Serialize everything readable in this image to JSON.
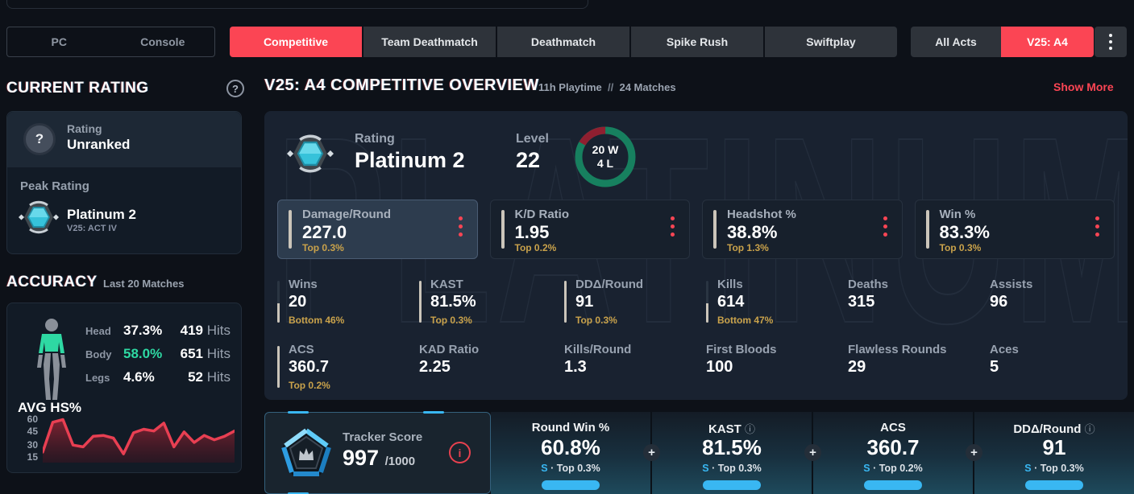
{
  "colors": {
    "accent_red": "#fb4554",
    "gold": "#c9a24b",
    "teal": "#2ed9a3",
    "blue": "#39b7f2",
    "donut_green": "#17805f",
    "donut_red": "#8f1f30",
    "chart_line": "#e83f52"
  },
  "topbar": {
    "platform": {
      "pc": "PC",
      "console": "Console"
    },
    "mode_tabs": [
      {
        "label": "Competitive",
        "active": true
      },
      {
        "label": "Team Deathmatch",
        "active": false
      },
      {
        "label": "Deathmatch",
        "active": false
      },
      {
        "label": "Spike Rush",
        "active": false
      },
      {
        "label": "Swiftplay",
        "active": false
      }
    ],
    "act_tabs": {
      "all": "All Acts",
      "current": "V25: A4"
    }
  },
  "sidebar": {
    "current_rating": {
      "title": "CURRENT RATING",
      "badge_glyph": "?",
      "rating_label": "Rating",
      "rating_value": "Unranked",
      "peak_label": "Peak Rating",
      "peak_rank": "Platinum 2",
      "peak_act": "V25: ACT IV"
    },
    "accuracy": {
      "title": "ACCURACY",
      "subtitle": "Last 20 Matches",
      "rows": [
        {
          "label": "Head",
          "pct": "37.3%",
          "hits": "419",
          "unit": " Hits"
        },
        {
          "label": "Body",
          "pct": "58.0%",
          "hits": "651",
          "unit": " Hits"
        },
        {
          "label": "Legs",
          "pct": "4.6%",
          "hits": "52",
          "unit": " Hits"
        }
      ],
      "avg_hs_title": "AVG HS%"
    }
  },
  "main": {
    "header": {
      "title": "V25: A4 COMPETITIVE OVERVIEW",
      "playtime": "11h Playtime",
      "separator": "//",
      "matches": "24 Matches",
      "show_more": "Show More"
    },
    "overview": {
      "rating_label": "Rating",
      "rating_value": "Platinum 2",
      "level_label": "Level",
      "level_value": "22",
      "wins": 20,
      "losses": 4,
      "wins_label": "20 W",
      "losses_label": "4 L",
      "watermark": "PLATINUM"
    },
    "featured_stats": [
      {
        "label": "Damage/Round",
        "value": "227.0",
        "sub": "Top 0.3%"
      },
      {
        "label": "K/D Ratio",
        "value": "1.95",
        "sub": "Top 0.2%"
      },
      {
        "label": "Headshot %",
        "value": "38.8%",
        "sub": "Top 1.3%"
      },
      {
        "label": "Win %",
        "value": "83.3%",
        "sub": "Top 0.3%"
      }
    ],
    "stats_grid": [
      {
        "label": "Wins",
        "value": "20",
        "sub": "Bottom 46%",
        "bar": "46"
      },
      {
        "label": "KAST",
        "value": "81.5%",
        "sub": "Top 0.3%",
        "bar": "100"
      },
      {
        "label": "DDΔ/Round",
        "value": "91",
        "sub": "Top 0.3%",
        "bar": "100"
      },
      {
        "label": "Kills",
        "value": "614",
        "sub": "Bottom 47%",
        "bar": "47"
      },
      {
        "label": "Deaths",
        "value": "315",
        "sub": ""
      },
      {
        "label": "Assists",
        "value": "96",
        "sub": ""
      },
      {
        "label": "ACS",
        "value": "360.7",
        "sub": "Top 0.2%",
        "bar": "100"
      },
      {
        "label": "KAD Ratio",
        "value": "2.25",
        "sub": ""
      },
      {
        "label": "Kills/Round",
        "value": "1.3",
        "sub": ""
      },
      {
        "label": "First Bloods",
        "value": "100",
        "sub": ""
      },
      {
        "label": "Flawless Rounds",
        "value": "29",
        "sub": ""
      },
      {
        "label": "Aces",
        "value": "5",
        "sub": ""
      }
    ]
  },
  "bottom": {
    "tracker": {
      "label": "Tracker Score",
      "value": "997",
      "max": "/1000",
      "info_glyph": "i"
    },
    "segments": [
      {
        "label": "Round Win %",
        "info": "",
        "value": "60.8%",
        "grade": "S",
        "sub": " · Top 0.3%"
      },
      {
        "label": "KAST",
        "info": "ⓘ",
        "value": "81.5%",
        "grade": "S",
        "sub": " · Top 0.3%"
      },
      {
        "label": "ACS",
        "info": "",
        "value": "360.7",
        "grade": "S",
        "sub": " · Top 0.2%"
      },
      {
        "label": "DDΔ/Round",
        "info": "ⓘ",
        "value": "91",
        "grade": "S",
        "sub": " · Top 0.3%"
      }
    ]
  },
  "chart_data": {
    "type": "area",
    "title": "AVG HS%",
    "xlabel": "",
    "ylabel": "",
    "x_implied": "last 20 matches, left to right",
    "values": [
      22,
      56,
      59,
      30,
      28,
      40,
      41,
      38,
      20,
      44,
      48,
      46,
      55,
      28,
      45,
      33,
      41,
      36,
      40,
      46
    ],
    "yticks": [
      "60",
      "45",
      "30",
      "15"
    ],
    "ylim": [
      10,
      65
    ],
    "grid": false,
    "legend": false
  }
}
